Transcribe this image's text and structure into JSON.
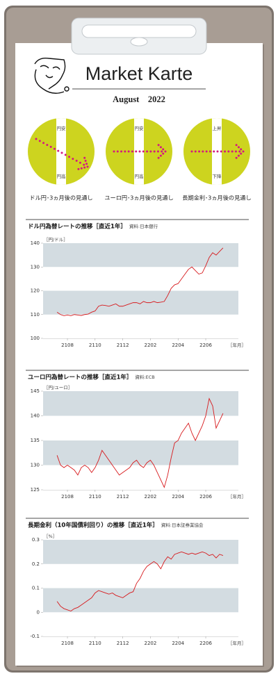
{
  "header": {
    "title": "Market Karte",
    "date": "August　2022"
  },
  "outlooks": [
    {
      "top": "円安",
      "bottom": "円高",
      "caption": "ドル円･3ヵ月後の見通し",
      "arrow": "down-right"
    },
    {
      "top": "円安",
      "bottom": "円高",
      "caption": "ユーロ円･3ヵ月後の見通し",
      "arrow": "right"
    },
    {
      "top": "上昇",
      "bottom": "下降",
      "caption": "長期金利･3ヵ月後の見通し",
      "arrow": "right"
    }
  ],
  "chart_data": [
    {
      "type": "line",
      "title": "ドル円為替レートの推移［直近1年］",
      "source": "資料:日本銀行",
      "ylabel": "［円/ドル］",
      "xlabel": "［年月］",
      "color": "#d7191c",
      "band_color": "#d3dce1",
      "banded_grid": true,
      "xlim": [
        6.24,
        20.36
      ],
      "xticks": [
        {
          "value": 8,
          "label": "2108"
        },
        {
          "value": 10,
          "label": "2110"
        },
        {
          "value": 12,
          "label": "2112"
        },
        {
          "value": 14,
          "label": "2202"
        },
        {
          "value": 16,
          "label": "2204"
        },
        {
          "value": 18,
          "label": "2206"
        }
      ],
      "ylim": [
        100,
        140
      ],
      "yticks": [
        100,
        110,
        120,
        130,
        140
      ],
      "x": [
        7.25,
        7.5,
        7.75,
        8,
        8.25,
        8.5,
        8.75,
        9,
        9.25,
        9.5,
        9.75,
        10,
        10.25,
        10.5,
        10.75,
        11,
        11.25,
        11.5,
        11.75,
        12,
        12.25,
        12.5,
        12.75,
        13,
        13.25,
        13.5,
        13.75,
        14,
        14.25,
        14.5,
        14.75,
        15,
        15.25,
        15.5,
        15.75,
        16,
        16.25,
        16.5,
        16.75,
        17,
        17.25,
        17.5,
        17.75,
        18,
        18.25,
        18.5,
        18.75,
        19,
        19.25
      ],
      "values": [
        111,
        110,
        109.5,
        109.8,
        109.5,
        110,
        109.8,
        109.6,
        110,
        110.2,
        111,
        111.5,
        113.5,
        114,
        113.8,
        113.5,
        114,
        114.5,
        113.5,
        113.5,
        114,
        114.5,
        115,
        115,
        114.5,
        115.5,
        115,
        115,
        115.5,
        115,
        115.2,
        115.5,
        118,
        121,
        122.5,
        123,
        125,
        127,
        129,
        130,
        128.5,
        127,
        127.5,
        130.5,
        134,
        136,
        135,
        136.5,
        138
      ]
    },
    {
      "type": "line",
      "title": "ユーロ円為替レートの推移［直近1年］",
      "source": "資料:ECB",
      "ylabel": "［円/ユーロ］",
      "xlabel": "［年月］",
      "color": "#d7191c",
      "band_color": "#d3dce1",
      "banded_grid": true,
      "xlim": [
        6.24,
        20.36
      ],
      "xticks": [
        {
          "value": 8,
          "label": "2108"
        },
        {
          "value": 10,
          "label": "2110"
        },
        {
          "value": 12,
          "label": "2112"
        },
        {
          "value": 14,
          "label": "2202"
        },
        {
          "value": 16,
          "label": "2204"
        },
        {
          "value": 18,
          "label": "2206"
        }
      ],
      "ylim": [
        125,
        145
      ],
      "yticks": [
        125,
        130,
        135,
        140,
        145
      ],
      "x": [
        7.25,
        7.5,
        7.75,
        8,
        8.25,
        8.5,
        8.75,
        9,
        9.25,
        9.5,
        9.75,
        10,
        10.25,
        10.5,
        10.75,
        11,
        11.25,
        11.5,
        11.75,
        12,
        12.25,
        12.5,
        12.75,
        13,
        13.25,
        13.5,
        13.75,
        14,
        14.25,
        14.5,
        14.75,
        15,
        15.25,
        15.5,
        15.75,
        16,
        16.25,
        16.5,
        16.75,
        17,
        17.25,
        17.5,
        17.75,
        18,
        18.25,
        18.5,
        18.75,
        19,
        19.25
      ],
      "values": [
        132,
        130,
        129.5,
        130,
        129.5,
        129,
        128,
        129.5,
        130,
        129.5,
        128.5,
        129.5,
        131,
        133,
        132,
        131,
        130,
        129,
        128,
        128.5,
        129,
        129.5,
        130.5,
        131,
        130,
        129.5,
        130.5,
        131,
        130,
        128.5,
        127,
        125.5,
        128,
        131.5,
        134.5,
        135,
        136.5,
        137.5,
        138.5,
        136.5,
        135,
        136.5,
        138,
        140,
        143.5,
        142,
        137.5,
        139,
        140.5
      ]
    },
    {
      "type": "line",
      "title": "長期金利（10年国債利回り）の推移［直近1年］",
      "source": "資料:日本証券業協会",
      "ylabel": "［%］",
      "xlabel": "［年月］",
      "color": "#d7191c",
      "band_color": "#d3dce1",
      "banded_grid": true,
      "xlim": [
        6.24,
        20.36
      ],
      "xticks": [
        {
          "value": 8,
          "label": "2108"
        },
        {
          "value": 10,
          "label": "2110"
        },
        {
          "value": 12,
          "label": "2112"
        },
        {
          "value": 14,
          "label": "2202"
        },
        {
          "value": 16,
          "label": "2204"
        },
        {
          "value": 18,
          "label": "2206"
        }
      ],
      "ylim": [
        -0.1,
        0.3
      ],
      "yticks": [
        -0.1,
        0,
        0.1,
        0.2,
        0.3
      ],
      "x": [
        7.25,
        7.5,
        7.75,
        8,
        8.25,
        8.5,
        8.75,
        9,
        9.25,
        9.5,
        9.75,
        10,
        10.25,
        10.5,
        10.75,
        11,
        11.25,
        11.5,
        11.75,
        12,
        12.25,
        12.5,
        12.75,
        13,
        13.25,
        13.5,
        13.75,
        14,
        14.25,
        14.5,
        14.75,
        15,
        15.25,
        15.5,
        15.75,
        16,
        16.25,
        16.5,
        16.75,
        17,
        17.25,
        17.5,
        17.75,
        18,
        18.25,
        18.5,
        18.75,
        19,
        19.25
      ],
      "values": [
        0.045,
        0.025,
        0.015,
        0.01,
        0.005,
        0.015,
        0.02,
        0.03,
        0.04,
        0.05,
        0.06,
        0.08,
        0.09,
        0.085,
        0.08,
        0.075,
        0.08,
        0.07,
        0.065,
        0.06,
        0.07,
        0.08,
        0.085,
        0.12,
        0.14,
        0.17,
        0.19,
        0.2,
        0.21,
        0.2,
        0.18,
        0.21,
        0.23,
        0.22,
        0.24,
        0.245,
        0.25,
        0.245,
        0.24,
        0.245,
        0.24,
        0.245,
        0.25,
        0.245,
        0.235,
        0.24,
        0.225,
        0.24,
        0.235
      ]
    }
  ]
}
